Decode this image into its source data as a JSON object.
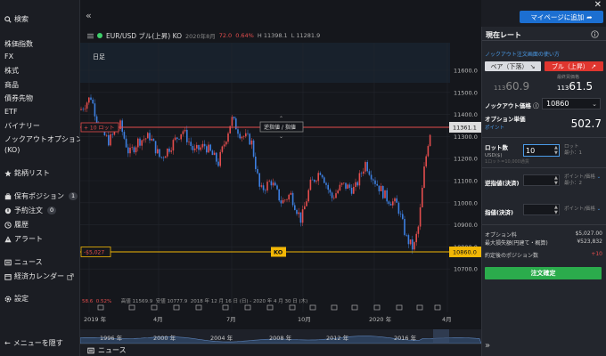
{
  "sidebar": {
    "search": "検索",
    "items": [
      "株価指数",
      "FX",
      "株式",
      "商品",
      "債券先物",
      "ETF",
      "バイナリー"
    ],
    "ko_item": "ノックアウトオプション(KO)",
    "watchlist": "銘柄リスト",
    "positions": {
      "label": "保有ポジション",
      "count": "1"
    },
    "orders": {
      "label": "予約注文",
      "count": "0"
    },
    "history": "履歴",
    "alerts": "アラート",
    "news": "ニュース",
    "calendar": "経済カレンダー",
    "settings": "設定",
    "hide_menu": "メニューを隠す"
  },
  "chart_header": {
    "instrument": "EUR/USD ブル(上昇) KO",
    "period": "2020年8月",
    "value": "72.0",
    "change": "0.64%",
    "high": "H 11398.1",
    "low": "L 11281.9"
  },
  "chart": {
    "timeframe": "日足",
    "y_ticks": [
      "11600.0",
      "11500.0",
      "11400.0",
      "11300.0",
      "11200.0",
      "11100.0",
      "11000.0",
      "10900.0",
      "10800.0",
      "10700.0"
    ],
    "x_labels": [
      "2019 年",
      "4月",
      "7月",
      "10月",
      "2020 年",
      "4月"
    ],
    "current_price_label": "11361.1",
    "ko_price_label": "10860.0",
    "lot_line_label": "+ 10 ロット",
    "reverse_stop_label": "逆指値 / 指値",
    "ko_line_loss": "-$5,027",
    "ko_tag": "KO",
    "colors": {
      "bull": "#e34d4d",
      "bear": "#3d7fe0",
      "ko_line": "#f2b705",
      "position_line": "#e34d4d"
    },
    "ohlc": {
      "v1": "58.6",
      "v2": "0.52%",
      "high": "高値 11569.9",
      "low": "安値 10777.9",
      "range": "2018 年 12 月 16 日 (日) - 2020 年 4 月 30 日 (木)"
    },
    "range_labels": [
      "1996 年",
      "2000 年",
      "2004 年",
      "2008 年",
      "2012 年",
      "2016 年"
    ]
  },
  "news_bar": "ニュース",
  "topbar": {
    "mypage_button": "マイページに追加"
  },
  "order_panel": {
    "title": "現在レート",
    "ko_link": "ノックアウト注文画面の使い方",
    "bear_btn": "ベア（下落）",
    "bull_btn": "ブル（上昇）",
    "bid_label": "最終買価格",
    "sell_price_small": "113",
    "sell_price_big": "60.9",
    "buy_price_small": "113",
    "buy_price_big": "61.5",
    "ko_price_label": "ノックアウト価格",
    "ko_price_value": "10860",
    "opt_price_label": "オプション単価",
    "opt_price_value": "502.7",
    "point_label": "ポイント",
    "lot_label": "ロット数",
    "lot_unit": "USD($)",
    "lot_value": "10",
    "lot_hint": "ロット",
    "lot_hint_min": "最小：1",
    "lot_sub": "1ロット=10,000通貨",
    "stop_label": "逆指値(決済)",
    "stop_hint": "ポイント/価格",
    "stop_hint_min": "最小：2",
    "limit_label": "指値(決済)",
    "limit_hint": "ポイント/価格",
    "fee_label": "オプション料",
    "fee_value": "$5,027.00",
    "max_loss_label": "最大損失額(円建て・概算)",
    "max_loss_value": "¥523,832",
    "positions_after_label": "約定後のポジション数",
    "positions_after_value": "+10",
    "confirm_btn": "注文確定"
  }
}
